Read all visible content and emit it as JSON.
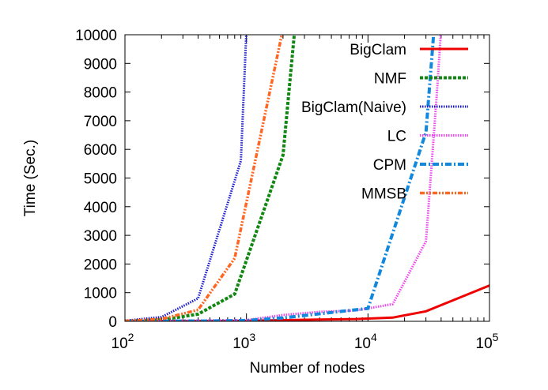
{
  "chart_data": {
    "type": "line",
    "title": "",
    "xlabel": "Number of nodes",
    "ylabel": "Time (Sec.)",
    "xscale": "log",
    "xlim": [
      100,
      100000
    ],
    "ylim": [
      0,
      10000
    ],
    "x_ticks": [
      {
        "value": 100,
        "base": "10",
        "exp": "2"
      },
      {
        "value": 1000,
        "base": "10",
        "exp": "3"
      },
      {
        "value": 10000,
        "base": "10",
        "exp": "4"
      },
      {
        "value": 100000,
        "base": "10",
        "exp": "5"
      }
    ],
    "y_ticks": [
      "0",
      "1000",
      "2000",
      "3000",
      "4000",
      "5000",
      "6000",
      "7000",
      "8000",
      "9000",
      "10000"
    ],
    "legend_position": "top-right",
    "grid": false,
    "series": [
      {
        "name": "BigClam",
        "color": "#ee0000",
        "dash": "solid",
        "x": [
          100,
          500,
          1000,
          2000,
          4000,
          8000,
          16000,
          30000,
          100000
        ],
        "y": [
          5,
          10,
          20,
          40,
          60,
          80,
          130,
          350,
          1250
        ]
      },
      {
        "name": "NMF",
        "color": "#118811",
        "dash": "dashed",
        "x": [
          100,
          200,
          400,
          800,
          2000,
          2500
        ],
        "y": [
          10,
          50,
          250,
          950,
          5800,
          10200
        ]
      },
      {
        "name": "BigClam(Naive)",
        "color": "#1a1acc",
        "dash": "dotted",
        "x": [
          100,
          200,
          400,
          900,
          1000
        ],
        "y": [
          20,
          150,
          800,
          5600,
          10200
        ]
      },
      {
        "name": "LC",
        "color": "#ee44ee",
        "dash": "dotted",
        "x": [
          100,
          1000,
          2000,
          4000,
          8000,
          16000,
          30000,
          37000,
          40000
        ],
        "y": [
          5,
          40,
          220,
          330,
          380,
          600,
          2800,
          8000,
          10200
        ]
      },
      {
        "name": "CPM",
        "color": "#1188dd",
        "dash": "dashdot",
        "x": [
          100,
          500,
          1000,
          2000,
          10000,
          30000,
          35000
        ],
        "y": [
          5,
          10,
          30,
          120,
          450,
          6600,
          10200
        ]
      },
      {
        "name": "MMSB",
        "color": "#ff6622",
        "dash": "dashdotdot",
        "x": [
          100,
          200,
          400,
          800,
          2000
        ],
        "y": [
          10,
          80,
          400,
          2200,
          10200
        ]
      }
    ]
  }
}
